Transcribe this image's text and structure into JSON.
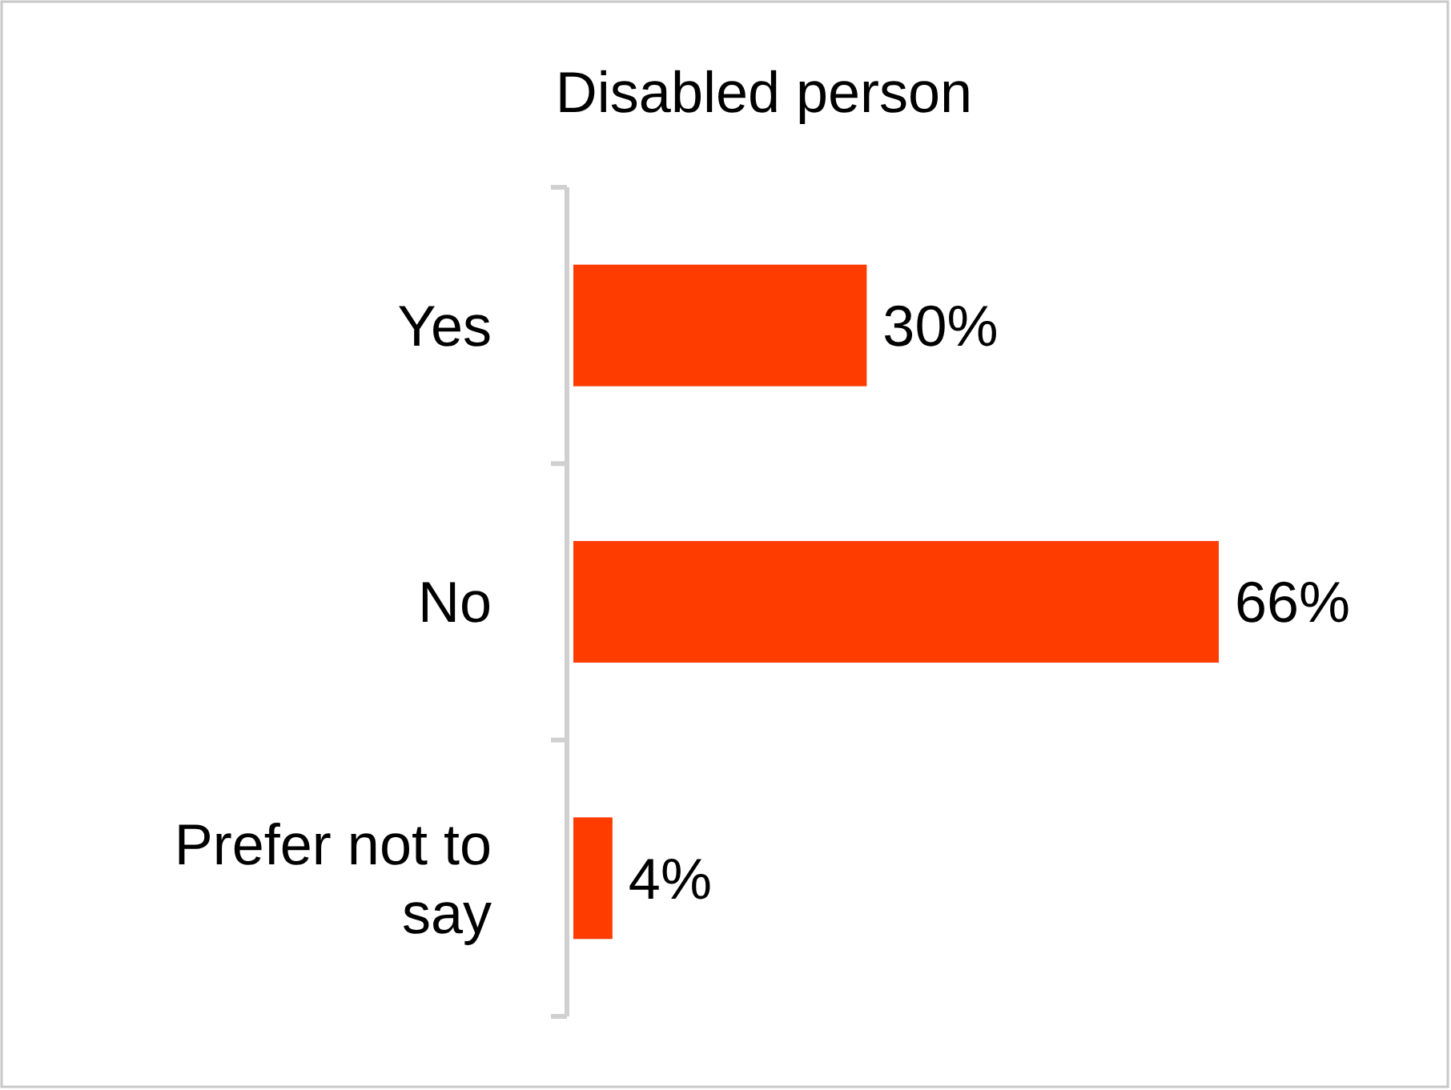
{
  "chart_data": {
    "type": "bar",
    "orientation": "horizontal",
    "title": "Disabled person",
    "categories": [
      "Yes",
      "No",
      "Prefer not to say"
    ],
    "values": [
      30,
      66,
      4
    ],
    "color": "#ff3c00",
    "value_labels": [
      "30%",
      "66%",
      "4%"
    ]
  }
}
